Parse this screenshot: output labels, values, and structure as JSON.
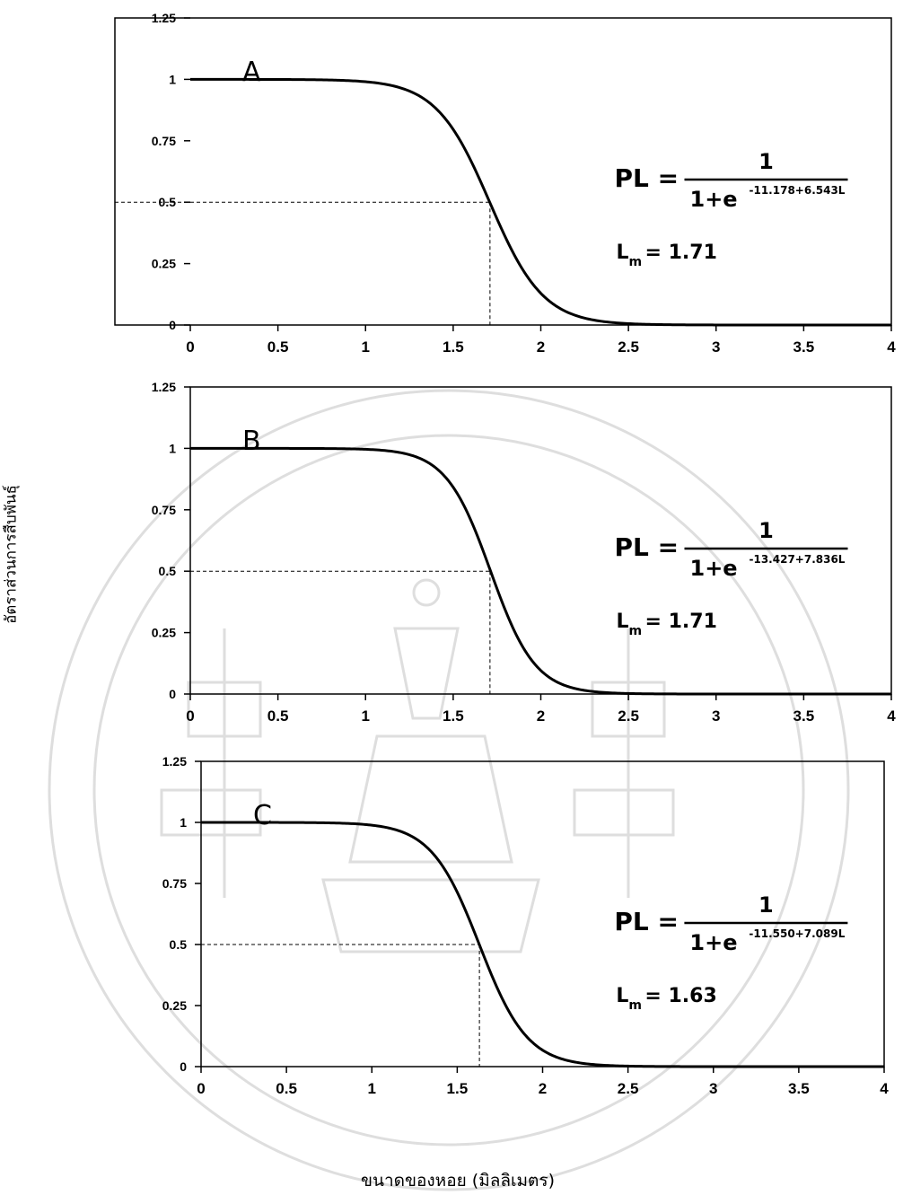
{
  "y_axis_label": "อัตราส่วนการสืบพันธุ์",
  "x_axis_label": "ขนาดของหอย (มิลลิเมตร)",
  "x_ticks": [
    "0",
    "0.5",
    "1",
    "1.5",
    "2",
    "2.5",
    "3",
    "3.5",
    "4"
  ],
  "y_ticks": [
    "0",
    "0.25",
    "0.5",
    "0.75",
    "1",
    "1.25"
  ],
  "chart_data": [
    {
      "type": "line",
      "panel": "A",
      "formula": {
        "lhs": "PL =",
        "numerator": "1",
        "base": "1+e",
        "exponent": "-11.178+6.543L"
      },
      "lm_symbol": "L",
      "lm_sub": "m",
      "lm_value": "= 1.71",
      "a": -11.178,
      "b": 6.543,
      "lm": 1.71,
      "xlim": [
        0,
        4
      ],
      "ylim": [
        0,
        1.25
      ]
    },
    {
      "type": "line",
      "panel": "B",
      "formula": {
        "lhs": "PL =",
        "numerator": "1",
        "base": "1+e",
        "exponent": "-13.427+7.836L"
      },
      "lm_symbol": "L",
      "lm_sub": "m",
      "lm_value": "= 1.71",
      "a": -13.427,
      "b": 7.836,
      "lm": 1.71,
      "xlim": [
        0,
        4
      ],
      "ylim": [
        0,
        1.25
      ]
    },
    {
      "type": "line",
      "panel": "C",
      "formula": {
        "lhs": "PL =",
        "numerator": "1",
        "base": "1+e",
        "exponent": "-11.550+7.089L"
      },
      "lm_symbol": "L",
      "lm_sub": "m",
      "lm_value": "= 1.63",
      "a": -11.55,
      "b": 7.089,
      "lm": 1.63,
      "xlim": [
        0,
        4
      ],
      "ylim": [
        0,
        1.25
      ]
    }
  ]
}
